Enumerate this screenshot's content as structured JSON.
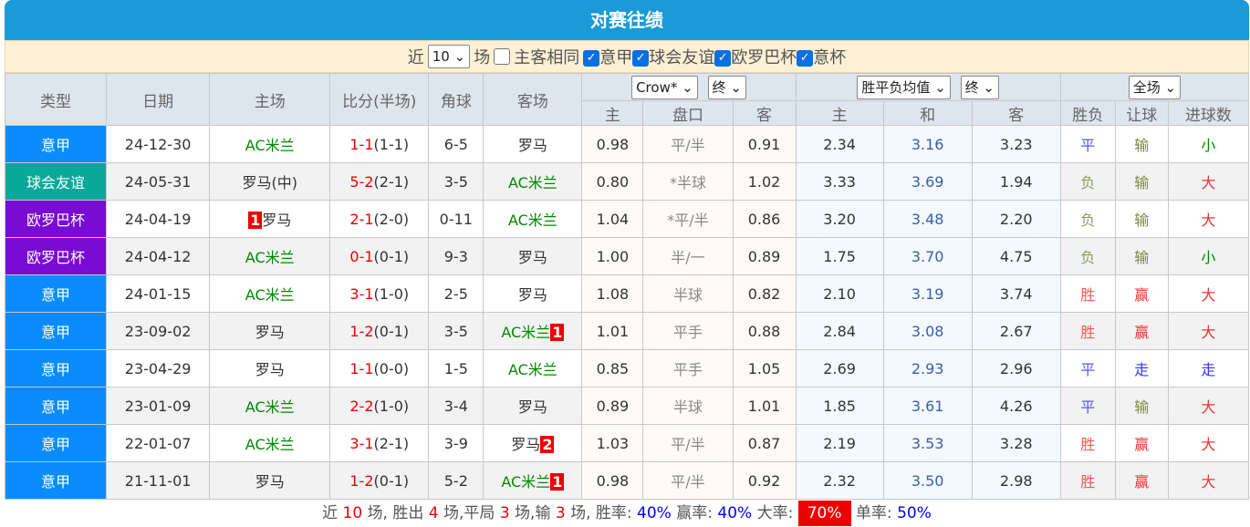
{
  "title": "对赛往绩",
  "filter": {
    "recent_label": "近",
    "recent_value": "10",
    "games_label": "场",
    "same_home": {
      "label": "主客相同",
      "checked": false
    },
    "leagues": [
      {
        "label": "意甲",
        "checked": true
      },
      {
        "label": "球会友谊",
        "checked": true
      },
      {
        "label": "欧罗巴杯",
        "checked": true
      },
      {
        "label": "意杯",
        "checked": true
      }
    ]
  },
  "headers": {
    "type": "类型",
    "date": "日期",
    "home": "主场",
    "score": "比分(半场)",
    "corner": "角球",
    "away": "客场",
    "company_select": "Crow*",
    "final_select1": "终",
    "euro_select": "胜平负均值",
    "final_select2": "终",
    "period_select": "全场",
    "sub": [
      "主",
      "盘口",
      "客",
      "主",
      "和",
      "客",
      "胜负",
      "让球",
      "进球数"
    ]
  },
  "colors": {
    "意甲": "#0a8cff",
    "球会友谊": "#0aa89a",
    "欧罗巴杯": "#7a0ad6",
    "title": "#1a9ad6"
  },
  "rows": [
    {
      "type": "意甲",
      "date": "24-12-30",
      "home": "AC米兰",
      "home_badge": "",
      "home_badge_pos": "",
      "sf": "1-1",
      "sh": "(1-1)",
      "corner": "6-5",
      "away": "罗马",
      "away_badge": "",
      "ah": "0.98",
      "line": "平/半",
      "aa": "0.91",
      "eh": "2.34",
      "ed": "3.16",
      "ea": "3.23",
      "res": "平",
      "hc": "输",
      "ou": "小"
    },
    {
      "type": "球会友谊",
      "date": "24-05-31",
      "home": "罗马(中)",
      "home_badge": "",
      "sf": "5-2",
      "sh": "(2-1)",
      "corner": "3-5",
      "away": "AC米兰",
      "away_badge": "",
      "ah": "0.80",
      "line": "*半球",
      "aa": "1.02",
      "eh": "3.33",
      "ed": "3.69",
      "ea": "1.94",
      "res": "负",
      "hc": "输",
      "ou": "大"
    },
    {
      "type": "欧罗巴杯",
      "date": "24-04-19",
      "home": "罗马",
      "home_badge": "1",
      "sf": "2-1",
      "sh": "(2-0)",
      "corner": "0-11",
      "away": "AC米兰",
      "away_badge": "",
      "ah": "1.04",
      "line": "*平/半",
      "aa": "0.86",
      "eh": "3.20",
      "ed": "3.48",
      "ea": "2.20",
      "res": "负",
      "hc": "输",
      "ou": "大"
    },
    {
      "type": "欧罗巴杯",
      "date": "24-04-12",
      "home": "AC米兰",
      "home_badge": "",
      "sf": "0-1",
      "sh": "(0-1)",
      "corner": "9-3",
      "away": "罗马",
      "away_badge": "",
      "ah": "1.00",
      "line": "半/一",
      "aa": "0.89",
      "eh": "1.75",
      "ed": "3.70",
      "ea": "4.75",
      "res": "负",
      "hc": "输",
      "ou": "小"
    },
    {
      "type": "意甲",
      "date": "24-01-15",
      "home": "AC米兰",
      "home_badge": "",
      "sf": "3-1",
      "sh": "(1-0)",
      "corner": "2-5",
      "away": "罗马",
      "away_badge": "",
      "ah": "1.08",
      "line": "半球",
      "aa": "0.82",
      "eh": "2.10",
      "ed": "3.19",
      "ea": "3.74",
      "res": "胜",
      "hc": "赢",
      "ou": "大"
    },
    {
      "type": "意甲",
      "date": "23-09-02",
      "home": "罗马",
      "home_badge": "",
      "sf": "1-2",
      "sh": "(0-1)",
      "corner": "3-5",
      "away": "AC米兰",
      "away_badge": "1",
      "ah": "1.01",
      "line": "平手",
      "aa": "0.88",
      "eh": "2.84",
      "ed": "3.08",
      "ea": "2.67",
      "res": "胜",
      "hc": "赢",
      "ou": "大"
    },
    {
      "type": "意甲",
      "date": "23-04-29",
      "home": "罗马",
      "home_badge": "",
      "sf": "1-1",
      "sh": "(0-0)",
      "corner": "1-5",
      "away": "AC米兰",
      "away_badge": "",
      "ah": "0.85",
      "line": "平手",
      "aa": "1.05",
      "eh": "2.69",
      "ed": "2.93",
      "ea": "2.96",
      "res": "平",
      "hc": "走",
      "ou": "走"
    },
    {
      "type": "意甲",
      "date": "23-01-09",
      "home": "AC米兰",
      "home_badge": "",
      "sf": "2-2",
      "sh": "(1-0)",
      "corner": "3-4",
      "away": "罗马",
      "away_badge": "",
      "ah": "0.89",
      "line": "半球",
      "aa": "1.01",
      "eh": "1.85",
      "ed": "3.61",
      "ea": "4.26",
      "res": "平",
      "hc": "输",
      "ou": "大"
    },
    {
      "type": "意甲",
      "date": "22-01-07",
      "home": "AC米兰",
      "home_badge": "",
      "sf": "3-1",
      "sh": "(2-1)",
      "corner": "3-9",
      "away": "罗马",
      "away_badge": "2",
      "ah": "1.03",
      "line": "平/半",
      "aa": "0.87",
      "eh": "2.19",
      "ed": "3.53",
      "ea": "3.28",
      "res": "胜",
      "hc": "赢",
      "ou": "大"
    },
    {
      "type": "意甲",
      "date": "21-11-01",
      "home": "罗马",
      "home_badge": "",
      "sf": "1-2",
      "sh": "(0-1)",
      "corner": "5-2",
      "away": "AC米兰",
      "away_badge": "1",
      "ah": "0.98",
      "line": "平/半",
      "aa": "0.92",
      "eh": "2.32",
      "ed": "3.50",
      "ea": "2.98",
      "res": "胜",
      "hc": "赢",
      "ou": "大"
    }
  ],
  "summary": {
    "t1": "近 ",
    "games": "10",
    "t2": " 场, 胜出 ",
    "win": "4",
    "t3": " 场,平局 ",
    "draw": "3",
    "t4": " 场,输 ",
    "lose": "3",
    "t5": " 场, 胜率: ",
    "win_rate": "40%",
    "t6": " 赢率: ",
    "hc_rate": "40%",
    "t7": " 大率: ",
    "over_rate": "70%",
    "t8": " 单率: ",
    "odd_rate": "50%"
  }
}
